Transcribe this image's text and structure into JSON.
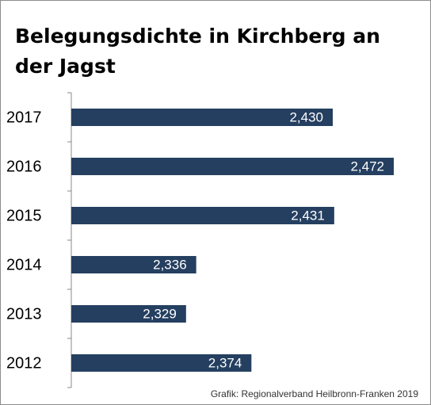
{
  "chart_data": {
    "type": "bar",
    "orientation": "horizontal",
    "title": "Belegungsdichte in Kirchberg an der Jagst",
    "categories": [
      "2017",
      "2016",
      "2015",
      "2014",
      "2013",
      "2012"
    ],
    "values": [
      2.43,
      2.472,
      2.431,
      2.336,
      2.329,
      2.374
    ],
    "value_labels": [
      "2,430",
      "2,472",
      "2,431",
      "2,336",
      "2,329",
      "2,374"
    ],
    "color": "#243f60",
    "xlim": [
      2.25,
      2.49
    ],
    "source": "Grafik: Regionalverband Heilbronn-Franken 2019"
  }
}
